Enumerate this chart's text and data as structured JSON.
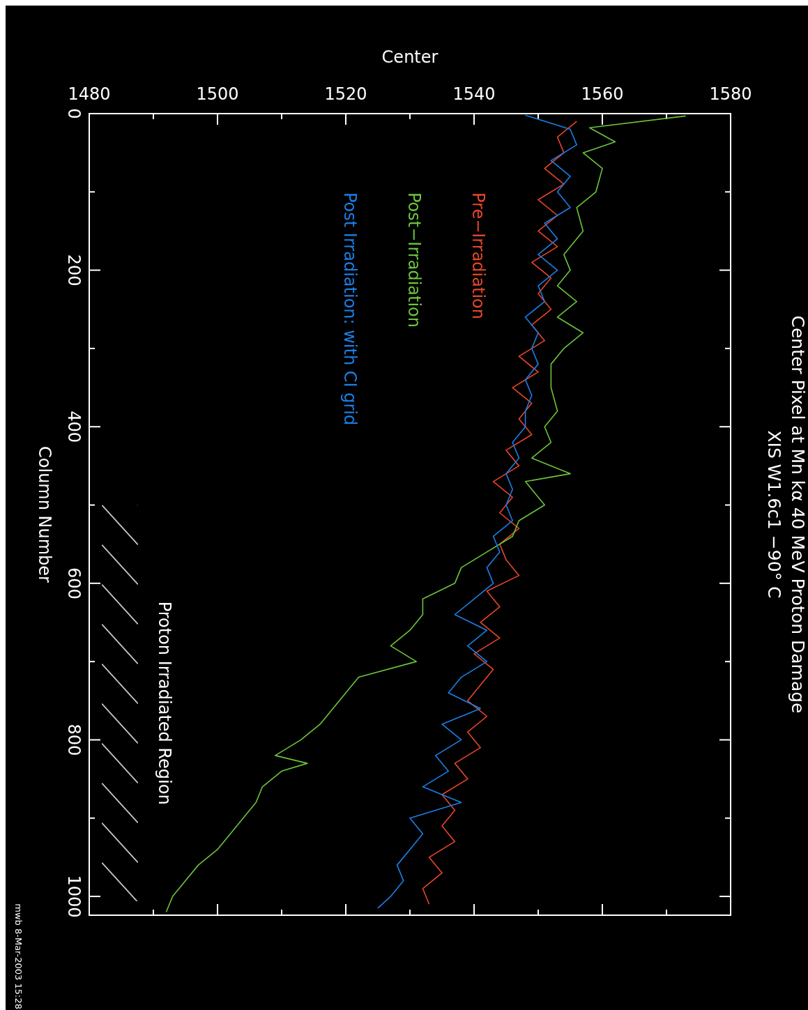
{
  "chart_data": {
    "type": "line",
    "title": "Center Pixel at Mn kα 40 MeV Proton Damage",
    "subtitle": "XIS W1.6c1 −90° C",
    "xlabel": "Center",
    "ylabel": "Column Number",
    "xlim": [
      1480,
      1580
    ],
    "ylim": [
      1024,
      0
    ],
    "xticks": [
      1480,
      {
        "value": 1490,
        "label": null
      },
      1500,
      {
        "value": 1510,
        "label": null
      },
      1520,
      {
        "value": 1530,
        "label": null
      },
      1540,
      {
        "value": 1550,
        "label": null
      },
      1560,
      {
        "value": 1570,
        "label": null
      },
      1580
    ],
    "yticks": [
      0,
      {
        "value": 100,
        "label": null
      },
      200,
      {
        "value": 300,
        "label": null
      },
      400,
      {
        "value": 500,
        "label": null
      },
      600,
      {
        "value": 700,
        "label": null
      },
      800,
      {
        "value": 900,
        "label": null
      },
      1000
    ],
    "grid": false,
    "legend": "left",
    "marker": "none",
    "line_style": "solid",
    "bands": [
      {
        "axis": "y",
        "from": 500,
        "to": 1006,
        "label": "Proton Irradiated Region",
        "color": "#ffffff"
      }
    ],
    "annotations": [
      "mwb 8-Mar-2003 15:28"
    ],
    "series": [
      {
        "name": "Pre−Irradiation",
        "color": "#e8452a",
        "values": [
          10,
          30,
          50,
          70,
          90,
          110,
          130,
          150,
          170,
          190,
          210,
          230,
          250,
          270,
          290,
          310,
          330,
          350,
          370,
          390,
          410,
          430,
          450,
          470,
          490,
          510,
          530,
          550,
          570,
          590,
          610,
          630,
          650,
          670,
          690,
          710,
          730,
          750,
          770,
          790,
          810,
          830,
          850,
          870,
          890,
          910,
          930,
          950,
          970,
          990,
          1010
        ],
        "x": [
          1556,
          1553,
          1554,
          1551,
          1554,
          1550,
          1553,
          1550,
          1553,
          1549,
          1552,
          1550,
          1552,
          1549,
          1551,
          1547,
          1550,
          1546,
          1549,
          1547,
          1549,
          1545,
          1547,
          1543,
          1546,
          1544,
          1547,
          1544,
          1545,
          1547,
          1542,
          1544,
          1541,
          1544,
          1540,
          1543,
          1541,
          1539,
          1542,
          1539,
          1541,
          1537,
          1539,
          1535,
          1537,
          1535,
          1537,
          1533,
          1535,
          1532,
          1533
        ]
      },
      {
        "name": "Post−Irradiation",
        "color": "#6cc43c",
        "values": [
          3,
          18,
          36,
          50,
          70,
          100,
          120,
          150,
          180,
          200,
          220,
          240,
          260,
          280,
          300,
          320,
          350,
          380,
          400,
          420,
          440,
          460,
          470,
          490,
          500,
          520,
          540,
          560,
          580,
          600,
          620,
          640,
          660,
          680,
          700,
          720,
          740,
          760,
          780,
          800,
          820,
          830,
          840,
          860,
          880,
          900,
          920,
          940,
          960,
          980,
          1000,
          1020
        ],
        "x": [
          1573,
          1558,
          1562,
          1557,
          1560,
          1559,
          1556,
          1557,
          1554,
          1555,
          1553,
          1556,
          1553,
          1557,
          1554,
          1552,
          1552,
          1553,
          1551,
          1552,
          1549,
          1555,
          1548,
          1550,
          1551,
          1547,
          1546,
          1542,
          1538,
          1537,
          1532,
          1532,
          1530,
          1527,
          1531,
          1522,
          1520,
          1518,
          1516,
          1513,
          1509,
          1514,
          1510,
          1507,
          1506,
          1504,
          1502,
          1500,
          1497,
          1495,
          1493,
          1492
        ]
      },
      {
        "name": "Post Irradiation: with CI grid",
        "color": "#1a7fe8",
        "values": [
          2,
          20,
          40,
          60,
          80,
          100,
          120,
          140,
          160,
          180,
          200,
          220,
          240,
          260,
          280,
          300,
          320,
          340,
          360,
          380,
          400,
          420,
          440,
          460,
          480,
          500,
          520,
          540,
          560,
          580,
          600,
          620,
          640,
          660,
          680,
          700,
          720,
          740,
          760,
          780,
          800,
          820,
          840,
          860,
          880,
          900,
          920,
          940,
          960,
          980,
          1000,
          1015
        ],
        "x": [
          1548,
          1555,
          1556,
          1552,
          1555,
          1553,
          1555,
          1551,
          1553,
          1550,
          1553,
          1550,
          1551,
          1548,
          1550,
          1549,
          1550,
          1548,
          1549,
          1548,
          1548,
          1546,
          1547,
          1545,
          1546,
          1545,
          1546,
          1543,
          1544,
          1542,
          1543,
          1540,
          1537,
          1542,
          1539,
          1542,
          1538,
          1536,
          1541,
          1535,
          1538,
          1534,
          1536,
          1532,
          1538,
          1530,
          1532,
          1530,
          1528,
          1529,
          1527,
          1525
        ]
      }
    ]
  }
}
